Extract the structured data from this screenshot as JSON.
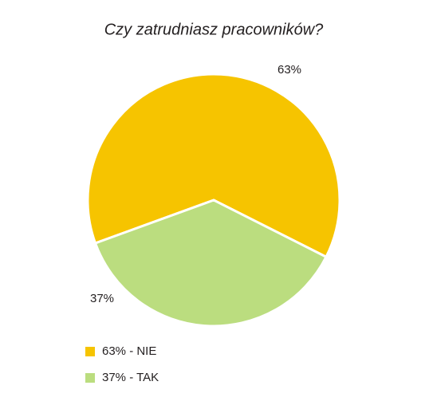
{
  "chart_data": {
    "type": "pie",
    "title": "Czy zatrudniasz pracowników?",
    "categories": [
      "63% - NIE",
      "37% - TAK"
    ],
    "values": [
      63,
      37
    ],
    "value_labels": [
      "63%",
      "37%"
    ],
    "colors": [
      "#f6c400",
      "#bbdd7f"
    ]
  }
}
